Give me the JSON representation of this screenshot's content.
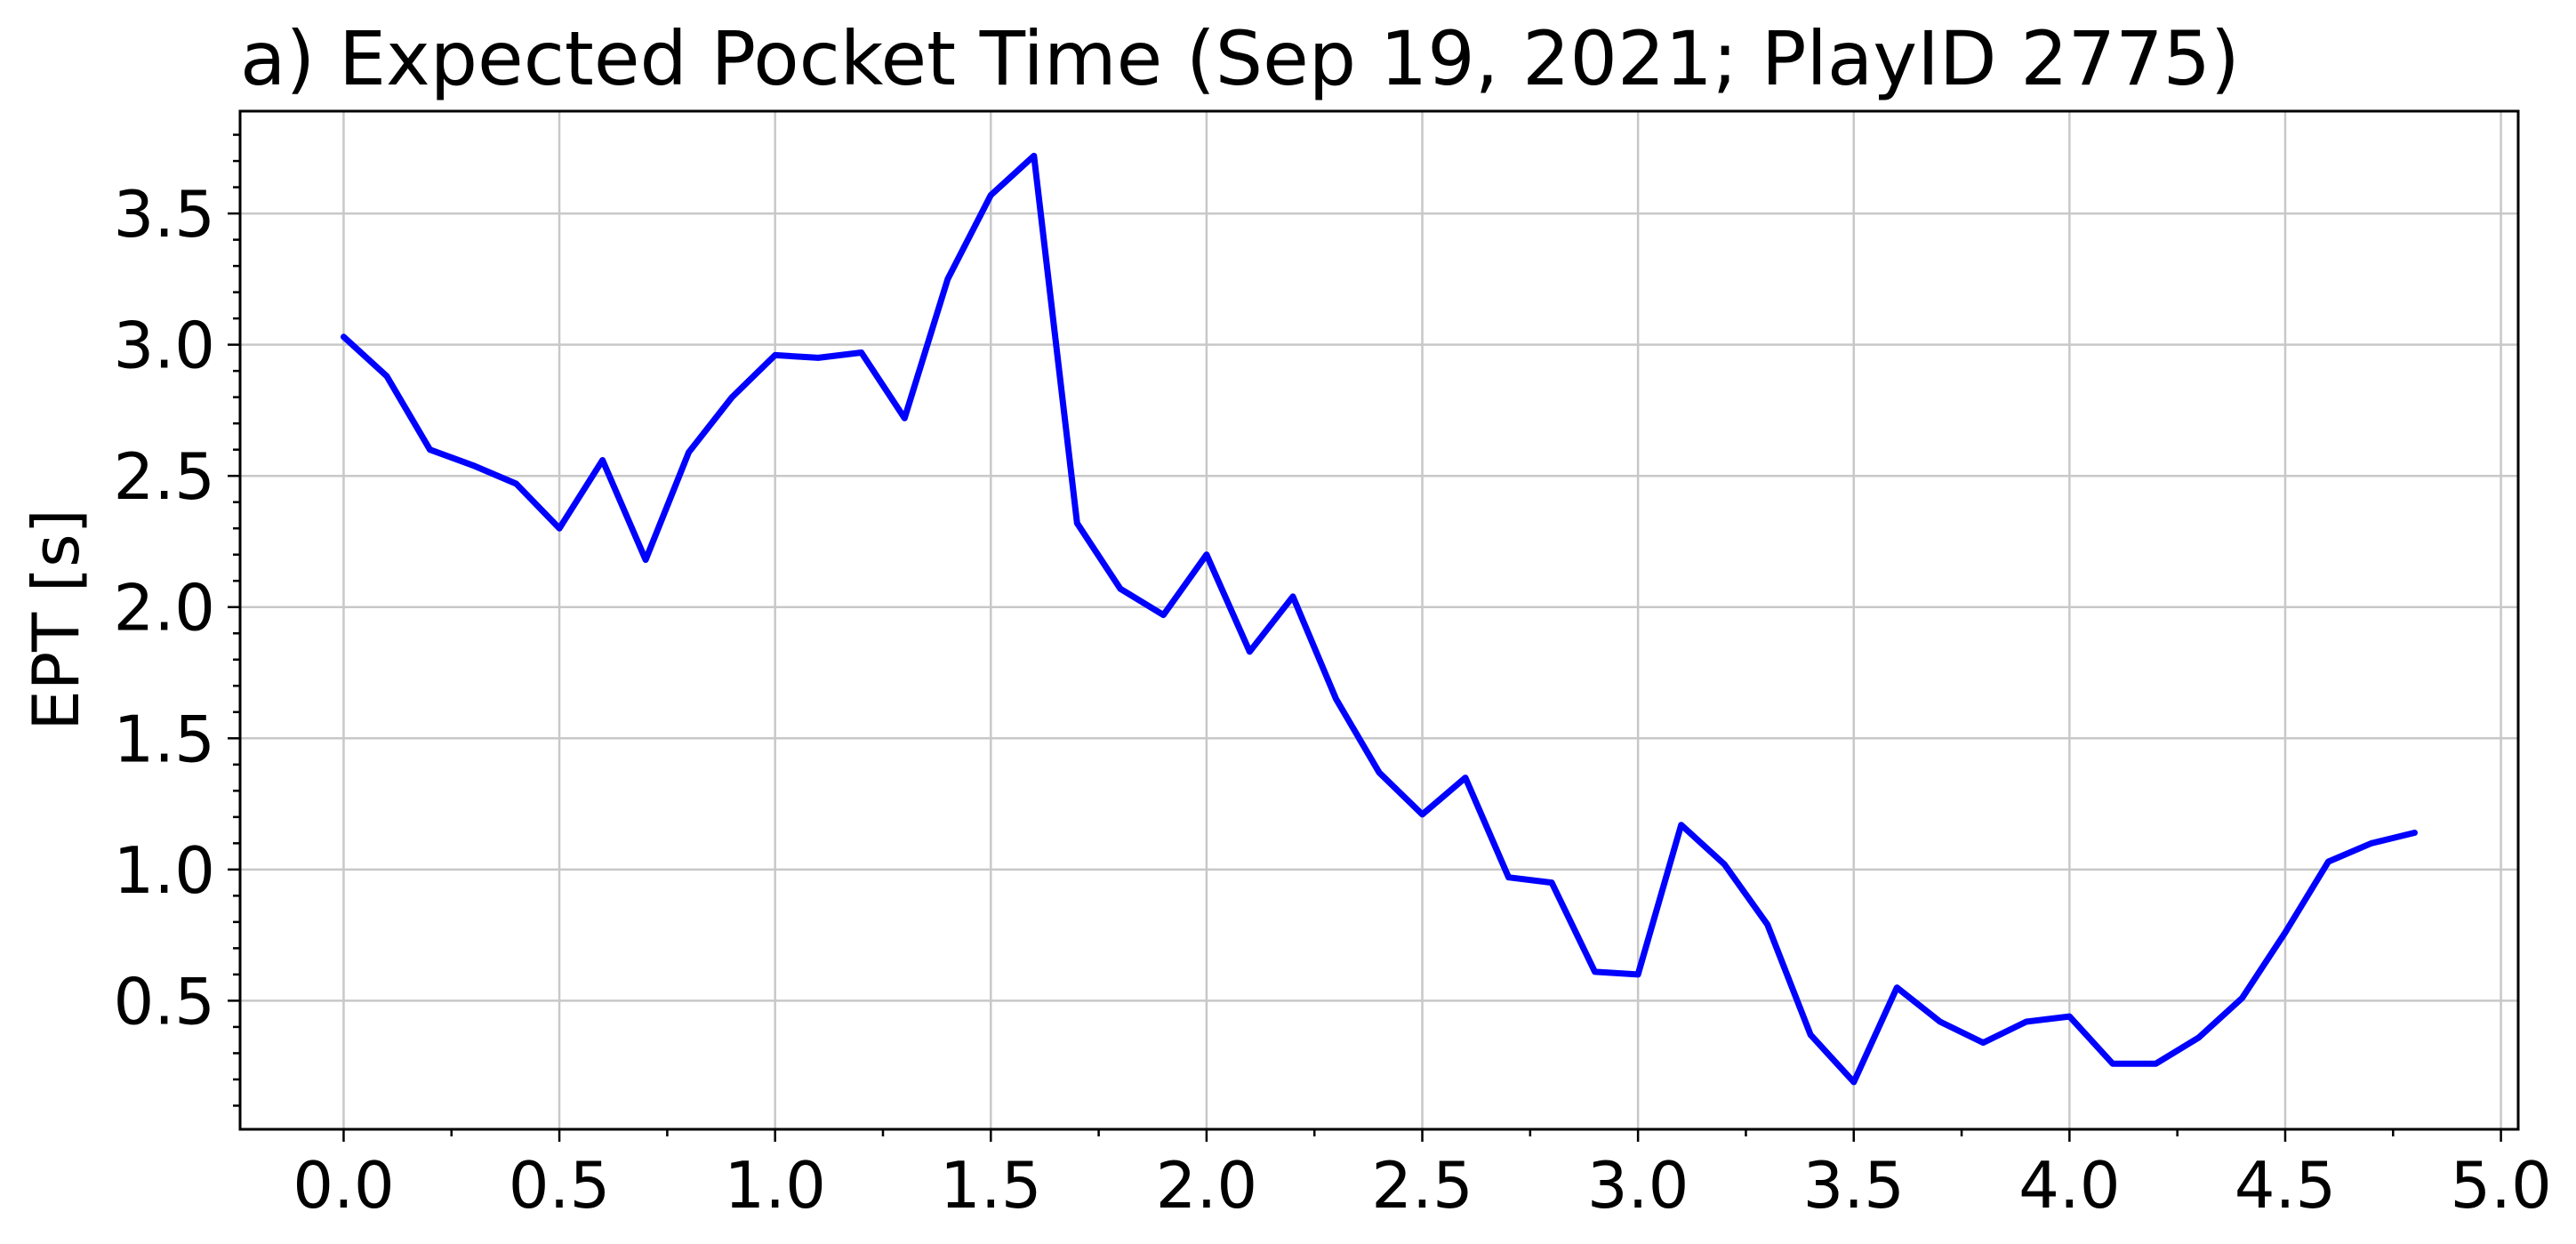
{
  "chart_data": {
    "type": "line",
    "title": "a) Expected Pocket Time (Sep 19, 2021; PlayID 2775)",
    "xlabel": "",
    "ylabel": "EPT [s]",
    "xlim": [
      -0.24,
      5.04
    ],
    "ylim": [
      0.01,
      3.89
    ],
    "xticks": [
      0.0,
      0.5,
      1.0,
      1.5,
      2.0,
      2.5,
      3.0,
      3.5,
      4.0,
      4.5,
      5.0
    ],
    "xtick_labels": [
      "0.0",
      "0.5",
      "1.0",
      "1.5",
      "2.0",
      "2.5",
      "3.0",
      "3.5",
      "4.0",
      "4.5",
      "5.0"
    ],
    "yticks": [
      0.5,
      1.0,
      1.5,
      2.0,
      2.5,
      3.0,
      3.5
    ],
    "ytick_labels": [
      "0.5",
      "1.0",
      "1.5",
      "2.0",
      "2.5",
      "3.0",
      "3.5"
    ],
    "grid": true,
    "line_color": "#0000ff",
    "series": [
      {
        "x": [
          0.0,
          0.1,
          0.2,
          0.3,
          0.4,
          0.5,
          0.6,
          0.7,
          0.8,
          0.9,
          1.0,
          1.1,
          1.2,
          1.3,
          1.4,
          1.5,
          1.6,
          1.7,
          1.8,
          1.9,
          2.0,
          2.1,
          2.2,
          2.3,
          2.4,
          2.5,
          2.6,
          2.7,
          2.8,
          2.9,
          3.0,
          3.1,
          3.2,
          3.3,
          3.4,
          3.5,
          3.6,
          3.7,
          3.8,
          3.9,
          4.0,
          4.1,
          4.2,
          4.3,
          4.4,
          4.5,
          4.6,
          4.7,
          4.8
        ],
        "y": [
          3.03,
          2.88,
          2.6,
          2.54,
          2.47,
          2.3,
          2.56,
          2.18,
          2.59,
          2.8,
          2.96,
          2.95,
          2.97,
          2.72,
          3.25,
          3.57,
          3.72,
          2.32,
          2.07,
          1.97,
          2.2,
          1.83,
          2.04,
          1.65,
          1.37,
          1.21,
          1.35,
          0.97,
          0.95,
          0.61,
          0.6,
          1.17,
          1.02,
          0.79,
          0.37,
          0.19,
          0.55,
          0.42,
          0.34,
          0.42,
          0.44,
          0.26,
          0.26,
          0.36,
          0.51,
          0.76,
          1.03,
          1.1,
          1.14
        ]
      }
    ]
  }
}
